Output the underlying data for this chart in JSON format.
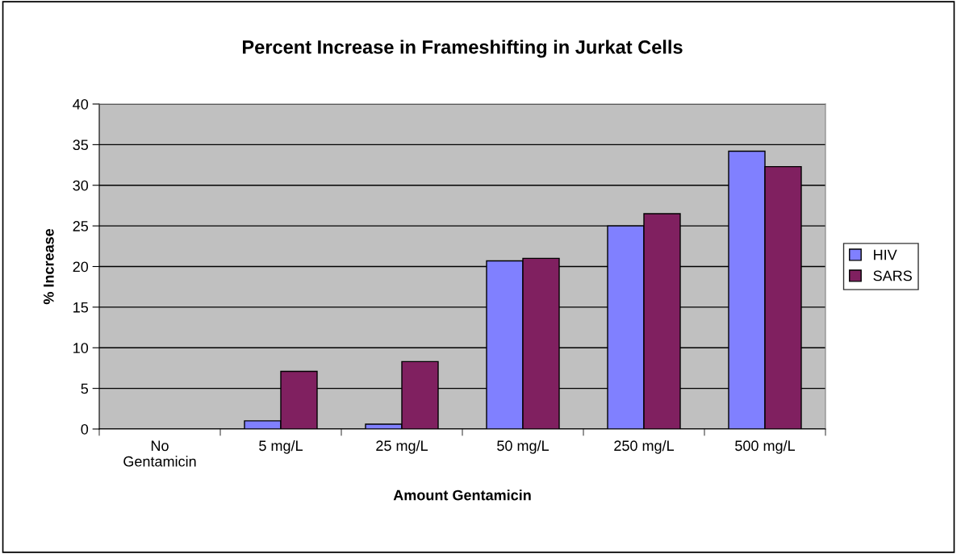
{
  "chart_data": {
    "type": "bar",
    "title": "Percent Increase in Frameshifting in Jurkat Cells",
    "xlabel": "Amount Gentamicin",
    "ylabel": "% Increase",
    "categories": [
      "No\nGentamicin",
      "5 mg/L",
      "25 mg/L",
      "50 mg/L",
      "250 mg/L",
      "500 mg/L"
    ],
    "series": [
      {
        "name": "HIV",
        "color": "#8080ff",
        "values": [
          null,
          1.0,
          0.6,
          20.7,
          25.0,
          34.2
        ]
      },
      {
        "name": "SARS",
        "color": "#802060",
        "values": [
          null,
          7.1,
          8.3,
          21.0,
          26.5,
          32.3
        ]
      }
    ],
    "ylim": [
      0,
      40
    ],
    "yticks": [
      0,
      5,
      10,
      15,
      20,
      25,
      30,
      35,
      40
    ],
    "grid": "y",
    "legend": "right"
  }
}
